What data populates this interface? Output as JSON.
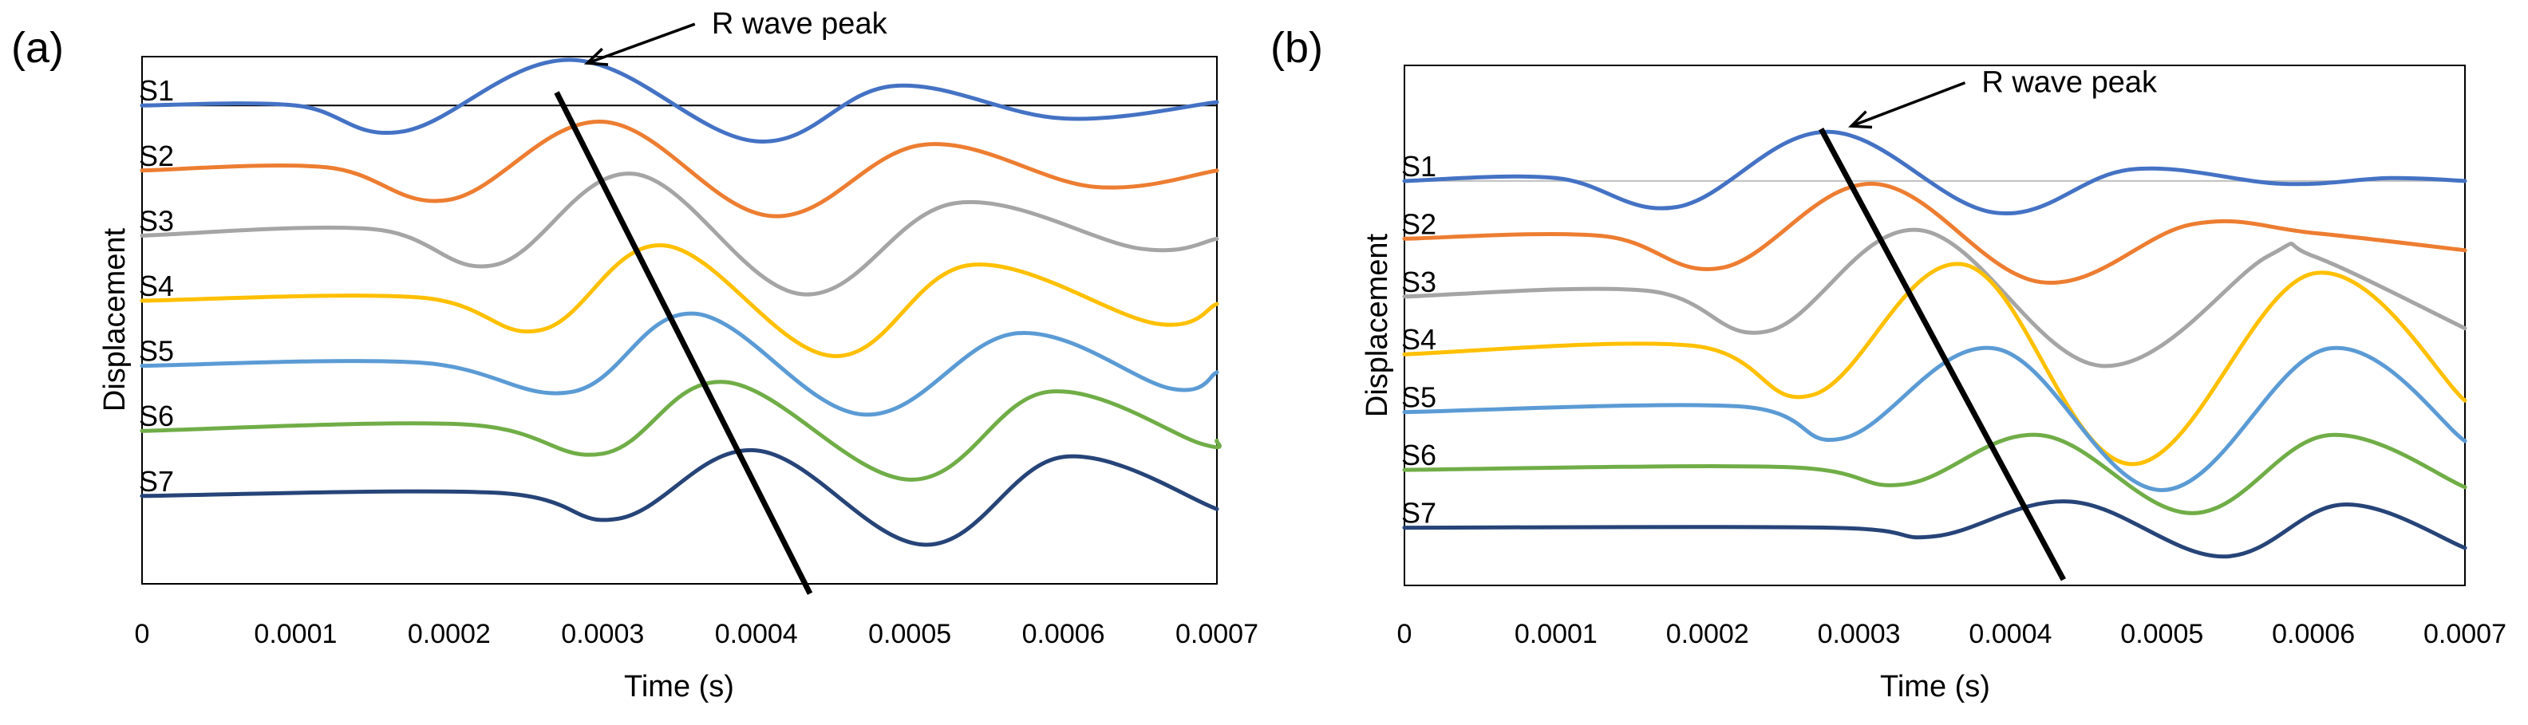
{
  "colors": {
    "S1": "#4472C4",
    "S2": "#ED7D31",
    "S3": "#A5A5A5",
    "S4": "#FFC000",
    "S5": "#5B9BD5",
    "S6": "#70AD47",
    "S7": "#264478",
    "baseline_a": "#000000",
    "baseline_b": "#BFBFBF"
  },
  "chart_data": [
    {
      "type": "line",
      "panel_label": "(a)",
      "xlabel": "Time (s)",
      "ylabel": "Displacement",
      "xlim": [
        0,
        0.0007
      ],
      "ylim": [
        -7.35,
        0.75
      ],
      "x_ticks": [
        "0",
        "0.0001",
        "0.0002",
        "0.0003",
        "0.0004",
        "0.0005",
        "0.0006",
        "0.0007"
      ],
      "x_tick_values": [
        0,
        0.0001,
        0.0002,
        0.0003,
        0.0004,
        0.0005,
        0.0006,
        0.0007
      ],
      "baseline_value": 0,
      "series": [
        {
          "name": "S1",
          "offset": 0,
          "x": [
            0,
            0.0001,
            0.00017,
            0.00028,
            0.0004,
            0.00049,
            0.0006,
            0.0007
          ],
          "y": [
            0,
            0,
            -0.4,
            0.7,
            -0.55,
            0.3,
            -0.2,
            0.05
          ]
        },
        {
          "name": "S2",
          "offset": -1,
          "x": [
            0,
            0.00012,
            0.0002,
            0.0003,
            0.00041,
            0.00051,
            0.00062,
            0.0007
          ],
          "y": [
            0,
            0.05,
            -0.45,
            0.75,
            -0.7,
            0.4,
            -0.25,
            0.0
          ]
        },
        {
          "name": "S3",
          "offset": -2,
          "x": [
            0,
            0.00015,
            0.00023,
            0.00032,
            0.00043,
            0.00053,
            0.00065,
            0.0007
          ],
          "y": [
            0,
            0.1,
            -0.45,
            0.95,
            -0.9,
            0.5,
            -0.2,
            -0.05
          ]
        },
        {
          "name": "S4",
          "offset": -3,
          "x": [
            0,
            0.00018,
            0.00026,
            0.00034,
            0.00045,
            0.00054,
            0.00066,
            0.0007
          ],
          "y": [
            0,
            0.05,
            -0.45,
            0.85,
            -0.85,
            0.55,
            -0.35,
            -0.05
          ]
        },
        {
          "name": "S5",
          "offset": -4,
          "x": [
            0,
            0.00018,
            0.00028,
            0.00036,
            0.00047,
            0.00057,
            0.00067,
            0.0007
          ],
          "y": [
            0,
            0.05,
            -0.4,
            0.8,
            -0.75,
            0.5,
            -0.35,
            -0.1
          ]
        },
        {
          "name": "S6",
          "offset": -5,
          "x": [
            0,
            0.00021,
            0.0003,
            0.00038,
            0.0005,
            0.00059,
            0.00069,
            0.0007
          ],
          "y": [
            0,
            0.1,
            -0.35,
            0.75,
            -0.75,
            0.6,
            -0.2,
            -0.15
          ]
        },
        {
          "name": "S7",
          "offset": -6,
          "x": [
            0,
            0.00023,
            0.00031,
            0.0004,
            0.00051,
            0.0006,
            0.0007
          ],
          "y": [
            0,
            0.05,
            -0.35,
            0.7,
            -0.75,
            0.6,
            -0.2
          ]
        }
      ],
      "r_wave_line": {
        "from": [
          0.00027,
          0.2
        ],
        "to": [
          0.000435,
          -7.5
        ]
      },
      "annotation": {
        "text": "R wave peak",
        "arrow_tip": [
          0.00029,
          0.65
        ],
        "arrow_tail": [
          0.00036,
          1.25
        ],
        "text_at": [
          0.000371,
          1.25
        ]
      }
    },
    {
      "type": "line",
      "panel_label": "(b)",
      "xlabel": "Time (s)",
      "ylabel": "Displacement",
      "xlim": [
        0,
        0.0007
      ],
      "ylim": [
        -7.0,
        2.0
      ],
      "x_ticks": [
        "0",
        "0.0001",
        "0.0002",
        "0.0003",
        "0.0004",
        "0.0005",
        "0.0006",
        "0.0007"
      ],
      "x_tick_values": [
        0,
        0.0001,
        0.0002,
        0.0003,
        0.0004,
        0.0005,
        0.0006,
        0.0007
      ],
      "baseline_value": 0,
      "series": [
        {
          "name": "S1",
          "offset": 0,
          "x": [
            0,
            0.0001,
            0.00018,
            0.00028,
            0.00039,
            0.00048,
            0.00058,
            0.00065,
            0.0007
          ],
          "y": [
            0,
            0.05,
            -0.45,
            0.85,
            -0.55,
            0.2,
            -0.05,
            0.05,
            0.0
          ]
        },
        {
          "name": "S2",
          "offset": -1,
          "x": [
            0,
            0.00013,
            0.00021,
            0.00031,
            0.00042,
            0.00052,
            0.0006,
            0.0007
          ],
          "y": [
            0,
            0.05,
            -0.5,
            0.95,
            -0.75,
            0.25,
            0.1,
            -0.2
          ]
        },
        {
          "name": "S3",
          "offset": -2,
          "x": [
            0,
            0.00016,
            0.00024,
            0.00034,
            0.00046,
            0.00057,
            0.0006,
            0.0007
          ],
          "y": [
            0,
            0.1,
            -0.6,
            1.15,
            -1.2,
            0.7,
            0.7,
            -0.55
          ]
        },
        {
          "name": "S4",
          "offset": -3,
          "x": [
            0,
            0.00019,
            0.00027,
            0.00037,
            0.00048,
            0.0006,
            0.0007
          ],
          "y": [
            0,
            0.15,
            -0.7,
            1.55,
            -1.9,
            1.4,
            -0.8
          ]
        },
        {
          "name": "S5",
          "offset": -4,
          "x": [
            0,
            0.00022,
            0.00029,
            0.00039,
            0.0005,
            0.00061,
            0.0007
          ],
          "y": [
            0,
            0.1,
            -0.45,
            1.1,
            -1.35,
            1.1,
            -0.5
          ]
        },
        {
          "name": "S6",
          "offset": -5,
          "x": [
            0,
            0.00025,
            0.00033,
            0.00042,
            0.00052,
            0.00061,
            0.0007
          ],
          "y": [
            0,
            0.05,
            -0.25,
            0.6,
            -0.75,
            0.6,
            -0.3
          ]
        },
        {
          "name": "S7",
          "offset": -6,
          "x": [
            0,
            0.00028,
            0.00035,
            0.00044,
            0.00054,
            0.00062,
            0.0007
          ],
          "y": [
            0,
            0.0,
            -0.15,
            0.45,
            -0.5,
            0.4,
            -0.35
          ]
        }
      ],
      "r_wave_line": {
        "from": [
          0.000275,
          0.9
        ],
        "to": [
          0.000435,
          -6.9
        ]
      },
      "annotation": {
        "text": "R wave peak",
        "arrow_tip": [
          0.000295,
          0.95
        ],
        "arrow_tail": [
          0.00037,
          1.7
        ],
        "text_at": [
          0.000381,
          1.7
        ]
      }
    }
  ]
}
